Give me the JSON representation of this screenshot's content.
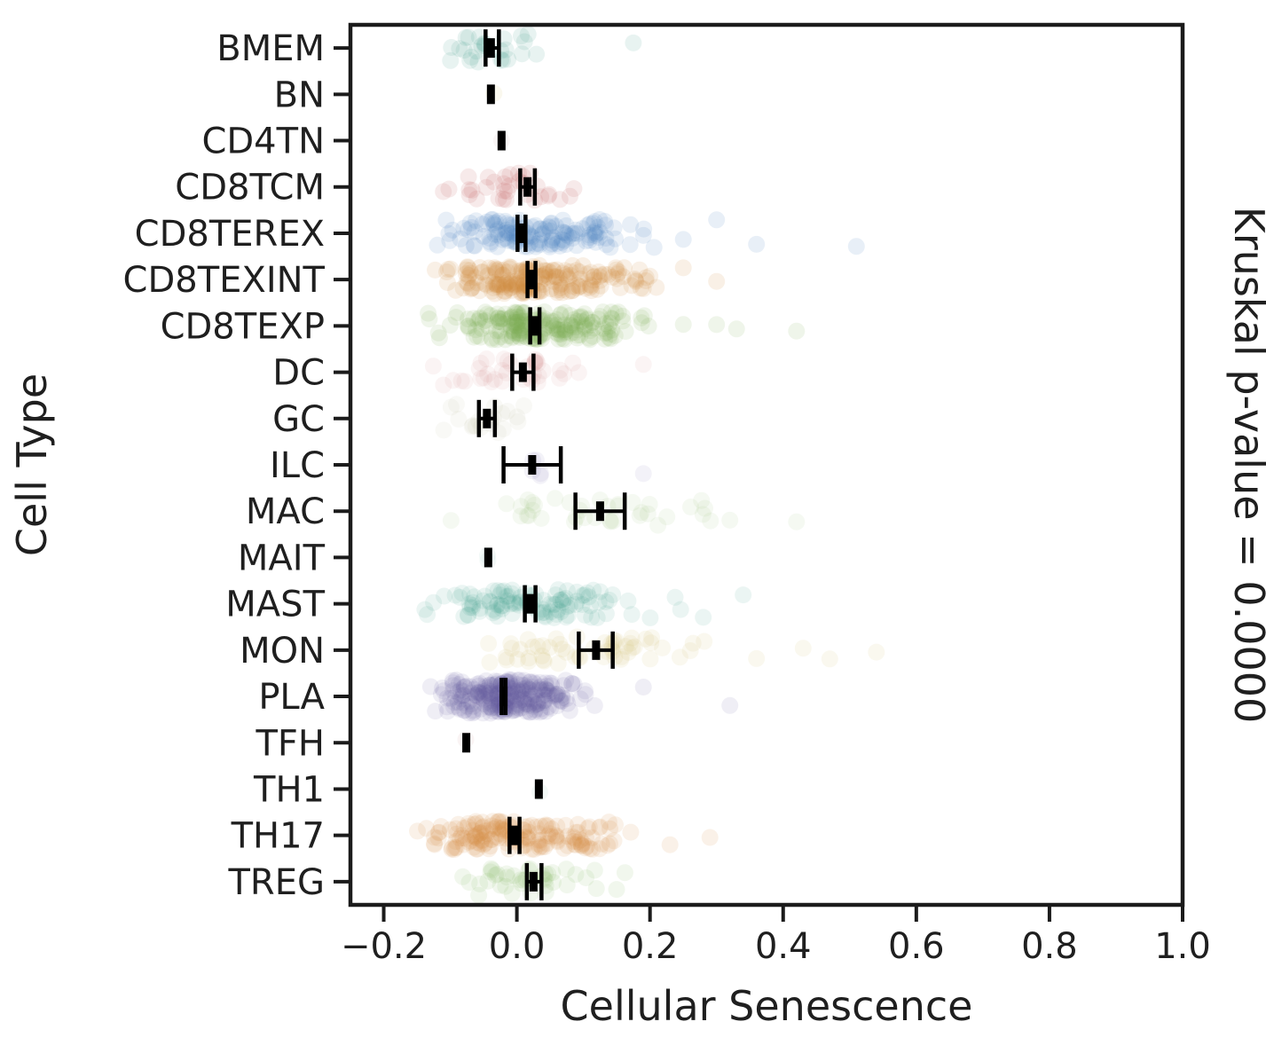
{
  "figure": {
    "xlabel": "Cellular Senescence",
    "ylabel": "Cell Type",
    "right_label": "Kruskal p-value = 0.0000"
  },
  "chart_data": {
    "type": "scatter",
    "variant": "strip-plot-with-mean-ci-errorbars",
    "title": "",
    "xlabel": "Cellular Senescence",
    "ylabel": "Cell Type",
    "right_annotation": "Kruskal p-value = 0.0000",
    "kruskal_p_value": "0.0000",
    "grid": false,
    "legend": "none",
    "axis_color": "#1b1b1b",
    "errorbar_color": "#000000",
    "xlim": [
      -0.25,
      1.0
    ],
    "xticks": {
      "values": [
        -0.2,
        0.0,
        0.2,
        0.4,
        0.6,
        0.8,
        1.0
      ],
      "labels": [
        "−0.2",
        "0.0",
        "0.2",
        "0.4",
        "0.6",
        "0.8",
        "1.0"
      ]
    },
    "categories": [
      "BMEM",
      "BN",
      "CD4TN",
      "CD8TCM",
      "CD8TEREX",
      "CD8TEXINT",
      "CD8TEXP",
      "DC",
      "GC",
      "ILC",
      "MAC",
      "MAIT",
      "MAST",
      "MON",
      "PLA",
      "TFH",
      "TH1",
      "TH17",
      "TREG"
    ],
    "rows": [
      {
        "label": "BMEM",
        "color": "#4da493",
        "alpha": 0.13,
        "n": 26,
        "mean": -0.039,
        "ci": [
          -0.047,
          -0.027
        ],
        "scatter_min": -0.118,
        "scatter_max": 0.07,
        "outliers": [
          0.175
        ]
      },
      {
        "label": "BN",
        "color": "#efe9c8",
        "alpha": 0.3,
        "n": 1,
        "mean": -0.039,
        "ci": null,
        "scatter_min": -0.05,
        "scatter_max": -0.03,
        "outliers": []
      },
      {
        "label": "CD4TN",
        "color": "#f0e2e2",
        "alpha": 0.3,
        "n": 1,
        "mean": -0.023,
        "ci": null,
        "scatter_min": -0.03,
        "scatter_max": -0.02,
        "outliers": []
      },
      {
        "label": "CD8TCM",
        "color": "#c96a6a",
        "alpha": 0.14,
        "n": 33,
        "mean": 0.016,
        "ci": [
          0.005,
          0.027
        ],
        "scatter_min": -0.12,
        "scatter_max": 0.115,
        "outliers": []
      },
      {
        "label": "CD8TEREX",
        "color": "#4f86c0",
        "alpha": 0.13,
        "n": 140,
        "mean": 0.007,
        "ci": [
          0.001,
          0.013
        ],
        "scatter_min": -0.145,
        "scatter_max": 0.22,
        "outliers": [
          0.25,
          0.3,
          0.36,
          0.51
        ]
      },
      {
        "label": "CD8TEXINT",
        "color": "#d28e3e",
        "alpha": 0.13,
        "n": 200,
        "mean": 0.022,
        "ci": [
          0.016,
          0.028
        ],
        "scatter_min": -0.13,
        "scatter_max": 0.21,
        "outliers": [
          0.25,
          0.3
        ]
      },
      {
        "label": "CD8TEXP",
        "color": "#7fae52",
        "alpha": 0.12,
        "n": 200,
        "mean": 0.027,
        "ci": [
          0.02,
          0.034
        ],
        "scatter_min": -0.14,
        "scatter_max": 0.21,
        "outliers": [
          0.25,
          0.3,
          0.33,
          0.42
        ]
      },
      {
        "label": "DC",
        "color": "#d89090",
        "alpha": 0.1,
        "n": 38,
        "mean": 0.009,
        "ci": [
          -0.007,
          0.025
        ],
        "scatter_min": -0.13,
        "scatter_max": 0.1,
        "outliers": [
          0.19
        ]
      },
      {
        "label": "GC",
        "color": "#c2c2a8",
        "alpha": 0.1,
        "n": 20,
        "mean": -0.045,
        "ci": [
          -0.057,
          -0.033
        ],
        "scatter_min": -0.13,
        "scatter_max": 0.02,
        "outliers": []
      },
      {
        "label": "ILC",
        "color": "#9c95c9",
        "alpha": 0.12,
        "n": 5,
        "mean": 0.023,
        "ci": [
          -0.02,
          0.066
        ],
        "scatter_min": -0.04,
        "scatter_max": 0.05,
        "outliers": [
          0.19
        ]
      },
      {
        "label": "MAC",
        "color": "#9cc47f",
        "alpha": 0.1,
        "n": 38,
        "mean": 0.125,
        "ci": [
          0.088,
          0.162
        ],
        "scatter_min": -0.1,
        "scatter_max": 0.31,
        "outliers": [
          0.32,
          0.42
        ]
      },
      {
        "label": "MAIT",
        "color": "#cfe8e4",
        "alpha": 0.25,
        "n": 2,
        "mean": -0.043,
        "ci": null,
        "scatter_min": -0.05,
        "scatter_max": -0.04,
        "outliers": []
      },
      {
        "label": "MAST",
        "color": "#3b9d8c",
        "alpha": 0.1,
        "n": 110,
        "mean": 0.02,
        "ci": [
          0.012,
          0.028
        ],
        "scatter_min": -0.15,
        "scatter_max": 0.25,
        "outliers": [
          0.28,
          0.34
        ]
      },
      {
        "label": "MON",
        "color": "#d6c878",
        "alpha": 0.12,
        "n": 55,
        "mean": 0.119,
        "ci": [
          0.093,
          0.144
        ],
        "scatter_min": -0.1,
        "scatter_max": 0.31,
        "outliers": [
          0.36,
          0.43,
          0.47,
          0.54
        ]
      },
      {
        "label": "PLA",
        "color": "#5e55a0",
        "alpha": 0.1,
        "n": 270,
        "mean": -0.02,
        "ci": [
          -0.023,
          -0.017
        ],
        "scatter_min": -0.13,
        "scatter_max": 0.12,
        "outliers": [
          0.19,
          0.32
        ]
      },
      {
        "label": "TFH",
        "color": "#f0dcdc",
        "alpha": 0.3,
        "n": 1,
        "mean": -0.076,
        "ci": null,
        "scatter_min": -0.08,
        "scatter_max": -0.07,
        "outliers": []
      },
      {
        "label": "TH1",
        "color": "#d8ece6",
        "alpha": 0.3,
        "n": 1,
        "mean": 0.033,
        "ci": null,
        "scatter_min": 0.03,
        "scatter_max": 0.04,
        "outliers": []
      },
      {
        "label": "TH17",
        "color": "#d28e3e",
        "alpha": 0.12,
        "n": 170,
        "mean": -0.003,
        "ci": [
          -0.011,
          0.004
        ],
        "scatter_min": -0.16,
        "scatter_max": 0.2,
        "outliers": [
          0.23,
          0.29
        ]
      },
      {
        "label": "TREG",
        "color": "#8fbe6a",
        "alpha": 0.12,
        "n": 42,
        "mean": 0.025,
        "ci": [
          0.015,
          0.037
        ],
        "scatter_min": -0.1,
        "scatter_max": 0.175,
        "outliers": []
      }
    ]
  }
}
